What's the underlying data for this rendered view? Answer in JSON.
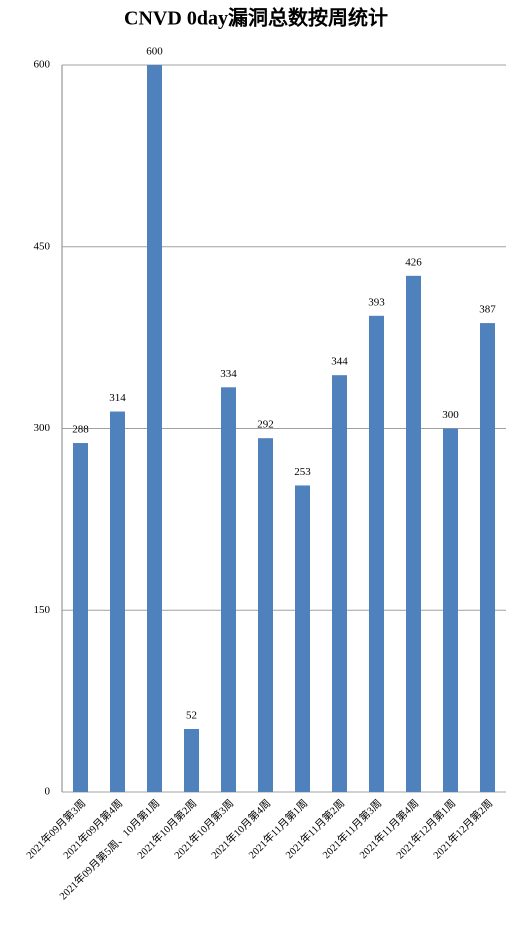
{
  "chart_data": {
    "type": "bar",
    "title": "CNVD 0day漏洞总数按周统计",
    "categories": [
      "2021年09月第3周",
      "2021年09月第4周",
      "2021年09月第5周、10月第1周",
      "2021年10月第2周",
      "2021年10月第3周",
      "2021年10月第4周",
      "2021年11月第1周",
      "2021年11月第2周",
      "2021年11月第3周",
      "2021年11月第4周",
      "2021年12月第1周",
      "2021年12月第2周"
    ],
    "values": [
      288,
      314,
      600,
      52,
      334,
      292,
      253,
      344,
      393,
      426,
      300,
      387
    ],
    "color": "#4f81bd",
    "ylim": [
      0,
      600
    ],
    "yticks": [
      0,
      150,
      300,
      450,
      600
    ],
    "grid": true
  }
}
